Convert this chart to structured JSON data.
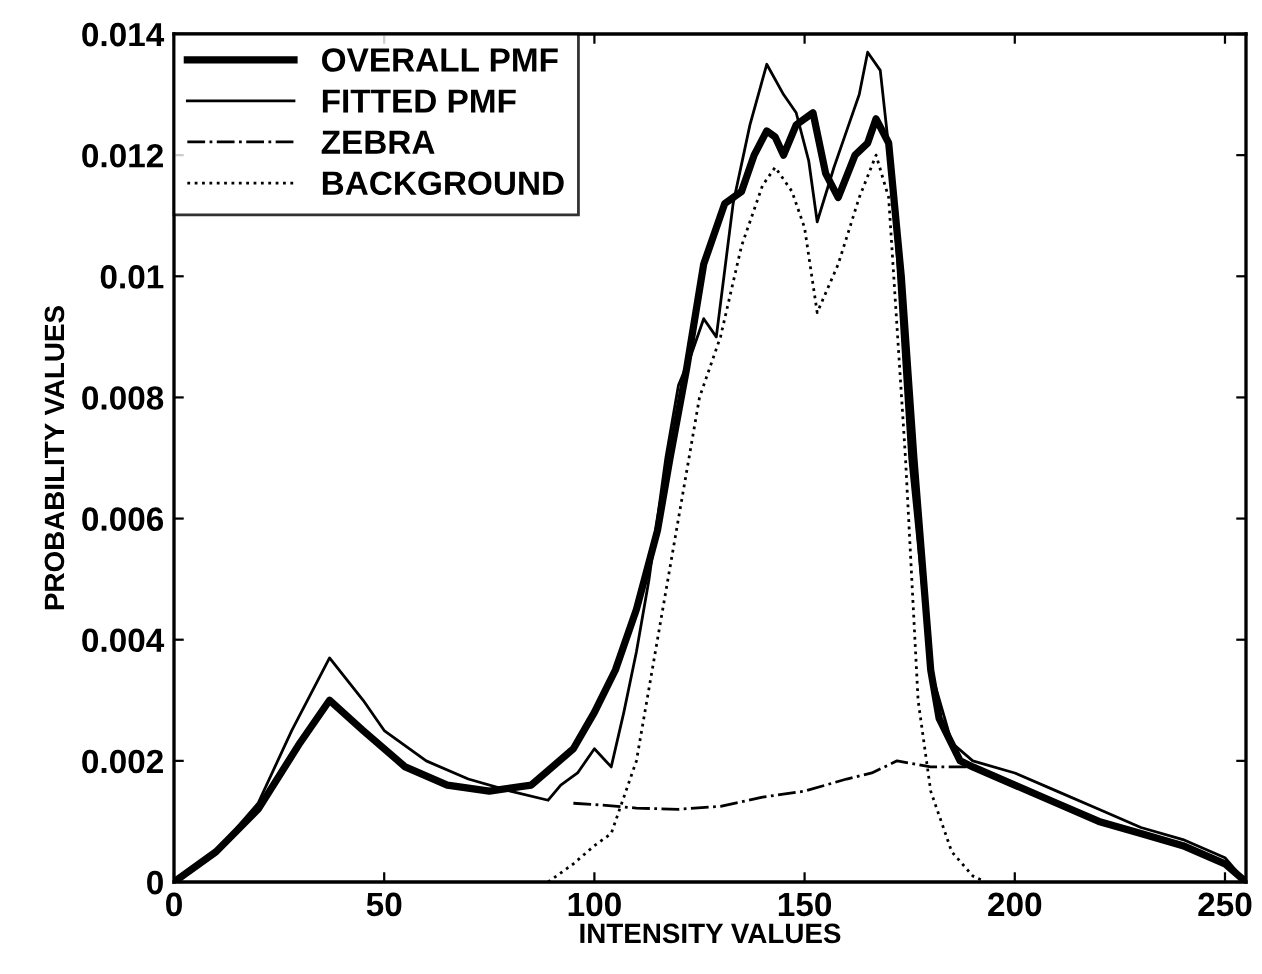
{
  "chart_data": {
    "type": "line",
    "xlabel": "INTENSITY VALUES",
    "ylabel": "PROBABILITY VALUES",
    "xlim": [
      0,
      255
    ],
    "ylim": [
      0,
      0.014
    ],
    "xticks": [
      0,
      50,
      100,
      150,
      200,
      250
    ],
    "yticks": [
      0,
      0.002,
      0.004,
      0.006,
      0.008,
      0.01,
      0.012,
      0.014
    ],
    "grid": false,
    "legend": "top left",
    "marker": "none",
    "series": [
      {
        "name": "OVERALL PMF",
        "color": "#000000",
        "line_style": "solid",
        "x": [
          0,
          10,
          20,
          30,
          37,
          45,
          55,
          65,
          75,
          85,
          95,
          100,
          105,
          110,
          115,
          118,
          122,
          126,
          131,
          135,
          138,
          141,
          143,
          145,
          148,
          152,
          155,
          158,
          162,
          165,
          167,
          170,
          173,
          176,
          180,
          182,
          187,
          190,
          200,
          210,
          220,
          230,
          240,
          250,
          255
        ],
        "values": [
          0,
          0.0005,
          0.0012,
          0.0023,
          0.003,
          0.0025,
          0.0019,
          0.0016,
          0.0015,
          0.0016,
          0.0022,
          0.0028,
          0.0035,
          0.0045,
          0.0058,
          0.007,
          0.0085,
          0.0102,
          0.0112,
          0.0114,
          0.012,
          0.0124,
          0.0123,
          0.012,
          0.0125,
          0.0127,
          0.0117,
          0.0113,
          0.012,
          0.0122,
          0.0126,
          0.0122,
          0.01,
          0.007,
          0.0035,
          0.0027,
          0.002,
          0.0019,
          0.0016,
          0.0013,
          0.001,
          0.0008,
          0.0006,
          0.0003,
          0
        ]
      },
      {
        "name": "FITTED PMF",
        "color": "#000000",
        "line_style": "solid",
        "x": [
          0,
          10,
          20,
          28,
          37,
          45,
          50,
          60,
          70,
          80,
          89,
          92,
          96,
          100,
          104,
          107,
          110,
          113,
          117,
          120,
          123,
          126,
          129,
          133,
          137,
          141,
          145,
          148,
          151,
          153,
          157,
          160,
          163,
          165,
          168,
          171,
          175,
          180,
          185,
          190,
          200,
          210,
          220,
          230,
          240,
          250,
          255
        ],
        "values": [
          0,
          0.0005,
          0.0013,
          0.0025,
          0.0037,
          0.003,
          0.0025,
          0.002,
          0.0017,
          0.0015,
          0.00135,
          0.0016,
          0.0018,
          0.0022,
          0.0019,
          0.0028,
          0.0038,
          0.005,
          0.007,
          0.0082,
          0.0087,
          0.0093,
          0.009,
          0.0112,
          0.0125,
          0.0135,
          0.013,
          0.0127,
          0.0119,
          0.0109,
          0.0118,
          0.0124,
          0.013,
          0.0137,
          0.0134,
          0.0115,
          0.007,
          0.0035,
          0.0023,
          0.002,
          0.0018,
          0.0015,
          0.0012,
          0.0009,
          0.0007,
          0.0004,
          0
        ]
      },
      {
        "name": "ZEBRA",
        "color": "#000000",
        "line_style": "dashdot",
        "x": [
          95,
          100,
          110,
          120,
          130,
          140,
          150,
          160,
          166,
          172,
          176,
          180,
          185,
          190
        ],
        "values": [
          0.0013,
          0.00128,
          0.00122,
          0.0012,
          0.00125,
          0.0014,
          0.0015,
          0.0017,
          0.0018,
          0.002,
          0.00195,
          0.0019,
          0.0019,
          0.0019
        ]
      },
      {
        "name": "BACKGROUND",
        "color": "#000000",
        "line_style": "dotted",
        "x": [
          89,
          95,
          100,
          104,
          110,
          115,
          120,
          125,
          130,
          135,
          140,
          143,
          147,
          150,
          153,
          158,
          163,
          167,
          170,
          174,
          177,
          180,
          185,
          190,
          193
        ],
        "values": [
          0,
          0.0003,
          0.0006,
          0.0008,
          0.002,
          0.004,
          0.006,
          0.008,
          0.009,
          0.0105,
          0.0115,
          0.0118,
          0.0114,
          0.0108,
          0.0094,
          0.0102,
          0.0113,
          0.012,
          0.0113,
          0.007,
          0.003,
          0.0015,
          0.0005,
          0.0001,
          0
        ]
      }
    ]
  }
}
